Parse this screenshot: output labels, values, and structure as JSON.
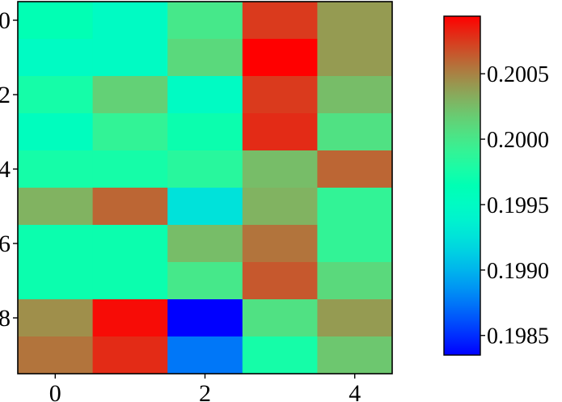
{
  "chart_data": {
    "type": "heatmap",
    "title": "",
    "xlabel": "",
    "ylabel": "",
    "x_categories": [
      0,
      1,
      2,
      3,
      4
    ],
    "y_categories": [
      0,
      1,
      2,
      3,
      4,
      5,
      6,
      7,
      8,
      9
    ],
    "x_tick_labels": [
      "0",
      "2",
      "4"
    ],
    "y_tick_labels": [
      "0",
      "2",
      "4",
      "6",
      "8"
    ],
    "values": [
      [
        0.19965,
        0.1995,
        0.2,
        0.20075,
        0.2004
      ],
      [
        0.1995,
        0.1995,
        0.2001,
        0.201,
        0.2004
      ],
      [
        0.19975,
        0.20015,
        0.1995,
        0.20075,
        0.20025
      ],
      [
        0.19955,
        0.1999,
        0.1997,
        0.2008,
        0.20005
      ],
      [
        0.19975,
        0.19975,
        0.19985,
        0.20025,
        0.2006
      ],
      [
        0.2003,
        0.2006,
        0.19925,
        0.2003,
        0.1999
      ],
      [
        0.1997,
        0.1997,
        0.20025,
        0.20055,
        0.1999
      ],
      [
        0.1997,
        0.1997,
        0.2,
        0.20065,
        0.2001
      ],
      [
        0.20045,
        0.2009,
        0.19835,
        0.20005,
        0.2004
      ],
      [
        0.20055,
        0.2008,
        0.19875,
        0.19975,
        0.2002
      ]
    ],
    "colorbar": {
      "colormap": "rainbow",
      "vmin": 0.19835,
      "vmax": 0.20094,
      "ticks": [
        0.1985,
        0.199,
        0.1995,
        0.2,
        0.2005
      ],
      "tick_labels": [
        "0.1985",
        "0.1990",
        "0.1995",
        "0.2000",
        "0.2005"
      ]
    },
    "grid": false,
    "legend": "colorbar-right"
  }
}
